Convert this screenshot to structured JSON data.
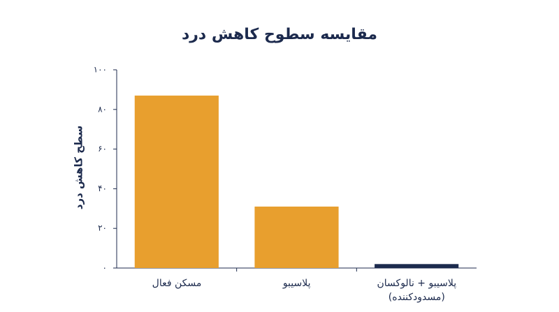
{
  "chart_data": {
    "type": "bar",
    "title": "مقایسه سطوح کاهش درد",
    "y_label": "سطح کاهش درد",
    "categories": [
      "مسکن فعال",
      "پلاسیبو",
      "پلاسیبو + نالوکسان\n(مسدودکننده)"
    ],
    "values": [
      87,
      31,
      2
    ],
    "colors": [
      "#e89f2e",
      "#e89f2e",
      "#1c2a4d"
    ],
    "ylim": [
      0,
      100
    ],
    "yticks": [
      {
        "value": 0,
        "label": "۰"
      },
      {
        "value": 20,
        "label": "۲۰"
      },
      {
        "value": 40,
        "label": "۴۰"
      },
      {
        "value": 60,
        "label": "۶۰"
      },
      {
        "value": 80,
        "label": "۸۰"
      },
      {
        "value": 100,
        "label": "۱۰۰"
      }
    ],
    "grid": false
  }
}
